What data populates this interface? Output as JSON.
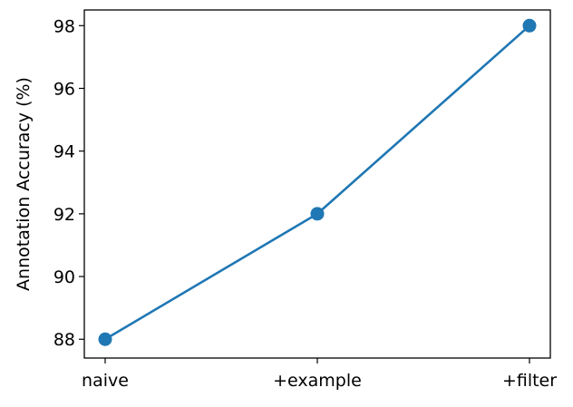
{
  "chart_data": {
    "type": "line",
    "categories": [
      "naive",
      "+example",
      "+filter"
    ],
    "series": [
      {
        "values": [
          88,
          92,
          98
        ],
        "color": "#1f77b4"
      }
    ],
    "title": "",
    "xlabel": "",
    "ylabel": "Annotation Accuracy (%)",
    "ylim": [
      87.4,
      98.5
    ],
    "yticks": [
      88,
      90,
      92,
      94,
      96,
      98
    ],
    "grid": false,
    "legend": "none"
  }
}
